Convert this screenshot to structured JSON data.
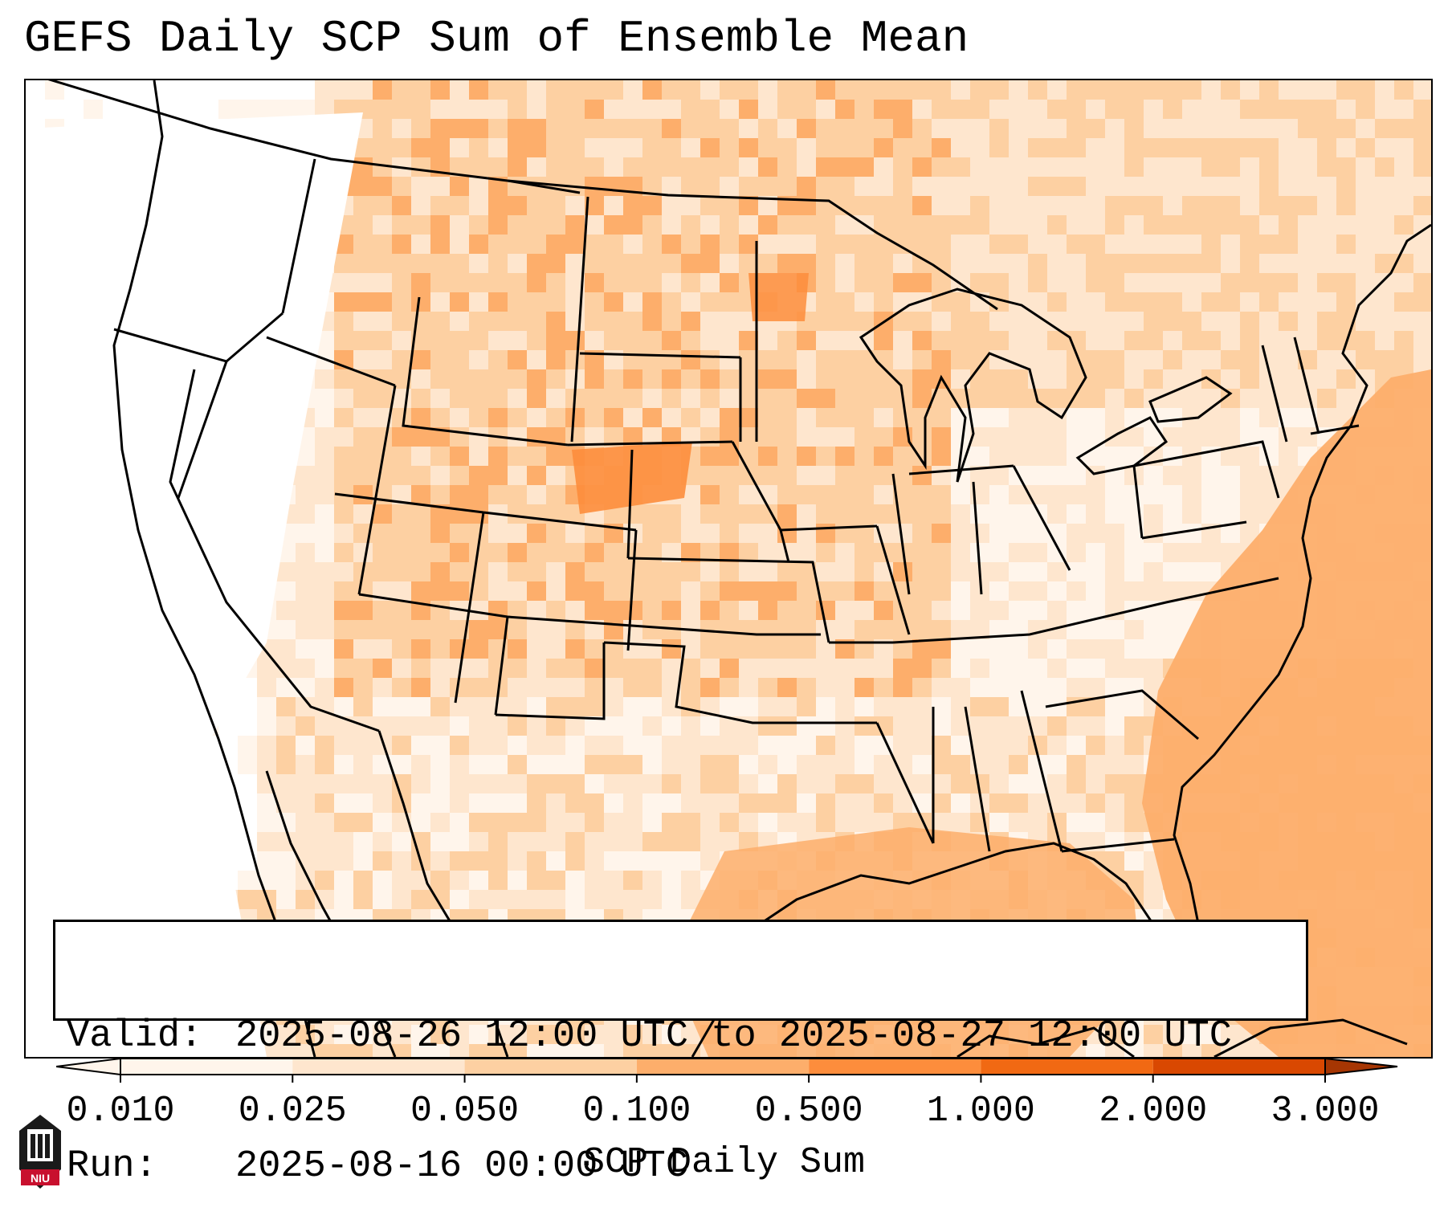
{
  "title": "GEFS Daily SCP Sum of Ensemble Mean",
  "valid_box": {
    "valid_key": "Valid:",
    "valid_value": "2025-08-26 12:00 UTC to 2025-08-27 12:00 UTC",
    "run_key": "Run:",
    "run_value": "2025-08-16 00:00 UTC"
  },
  "colorbar": {
    "label": "SCP Daily Sum",
    "ticks": [
      "0.010",
      "0.025",
      "0.050",
      "0.100",
      "0.500",
      "1.000",
      "2.000",
      "3.000"
    ],
    "colors": [
      "#fff5eb",
      "#fee6ce",
      "#fdd0a2",
      "#fdae6b",
      "#fd8d3c",
      "#f16913",
      "#d94801",
      "#a63603"
    ]
  },
  "logo": {
    "text": "NIU",
    "icon": "niu-logo-icon"
  },
  "map": {
    "projection": "lambert-conformal-conus",
    "basemap": "us-states-coastlines"
  }
}
